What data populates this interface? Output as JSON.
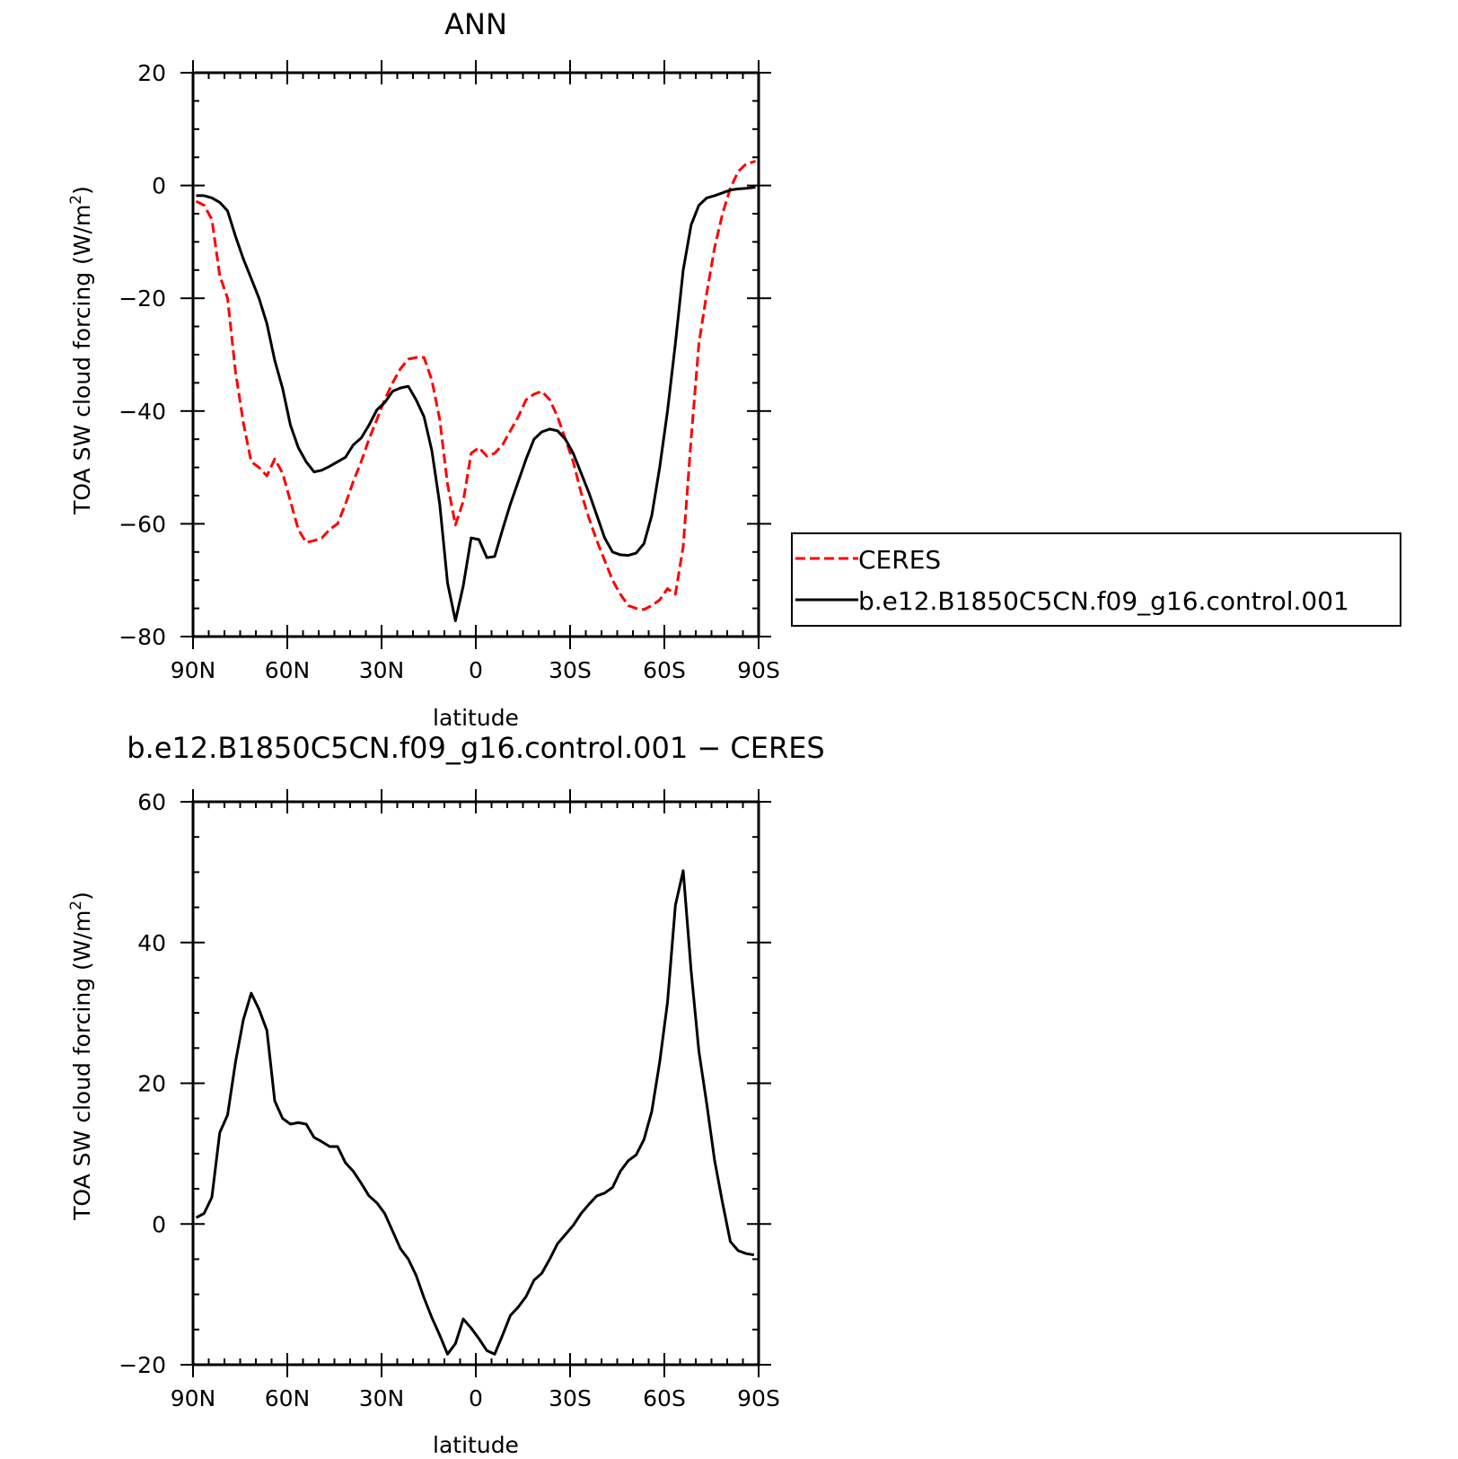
{
  "chart_data": [
    {
      "type": "line",
      "title": "ANN",
      "xlabel": "latitude",
      "ylabel": "TOA SW cloud forcing (W/m",
      "ylabel_sup": "2",
      "ylabel_close": ")",
      "xlim": [
        90,
        -90
      ],
      "ylim": [
        -80,
        20
      ],
      "xticks": [
        {
          "value": 90,
          "label": "90N"
        },
        {
          "value": 60,
          "label": "60N"
        },
        {
          "value": 30,
          "label": "30N"
        },
        {
          "value": 0,
          "label": "0"
        },
        {
          "value": -30,
          "label": "30S"
        },
        {
          "value": -60,
          "label": "60S"
        },
        {
          "value": -90,
          "label": "90S"
        }
      ],
      "yticks": [
        {
          "value": 20,
          "label": "20"
        },
        {
          "value": 0,
          "label": "0"
        },
        {
          "value": -20,
          "label": "−20"
        },
        {
          "value": -40,
          "label": "−40"
        },
        {
          "value": -60,
          "label": "−60"
        },
        {
          "value": -80,
          "label": "−80"
        }
      ],
      "legend_position": "right",
      "series": [
        {
          "name": "CERES",
          "color": "#ff0000",
          "style": "dashed",
          "points": [
            [
              89,
              -2.8
            ],
            [
              86.5,
              -3.5
            ],
            [
              84,
              -6
            ],
            [
              81.5,
              -16
            ],
            [
              79,
              -20
            ],
            [
              76.5,
              -33
            ],
            [
              74,
              -42
            ],
            [
              71.5,
              -49
            ],
            [
              69,
              -50
            ],
            [
              66.5,
              -51.5
            ],
            [
              64,
              -48.5
            ],
            [
              61.5,
              -51
            ],
            [
              59,
              -56
            ],
            [
              56.5,
              -61
            ],
            [
              54,
              -63.3
            ],
            [
              51.5,
              -63
            ],
            [
              49,
              -62.5
            ],
            [
              46.5,
              -61
            ],
            [
              44,
              -60
            ],
            [
              41.5,
              -56.5
            ],
            [
              39,
              -52.5
            ],
            [
              36.5,
              -49
            ],
            [
              34,
              -45
            ],
            [
              31.5,
              -41.5
            ],
            [
              29,
              -38
            ],
            [
              26.5,
              -35
            ],
            [
              24,
              -32.5
            ],
            [
              21.5,
              -30.8
            ],
            [
              19,
              -30.5
            ],
            [
              16.5,
              -30.5
            ],
            [
              14,
              -34.5
            ],
            [
              11.5,
              -41.5
            ],
            [
              9,
              -53
            ],
            [
              6.5,
              -60.2
            ],
            [
              4,
              -56
            ],
            [
              1.5,
              -47.5
            ],
            [
              -1,
              -46.5
            ],
            [
              -3.5,
              -48
            ],
            [
              -6,
              -47.5
            ],
            [
              -8.5,
              -46
            ],
            [
              -11,
              -43.5
            ],
            [
              -13.5,
              -41
            ],
            [
              -16,
              -38
            ],
            [
              -18.5,
              -37
            ],
            [
              -21,
              -36.5
            ],
            [
              -23.5,
              -38
            ],
            [
              -26,
              -41
            ],
            [
              -28.5,
              -45
            ],
            [
              -31,
              -49
            ],
            [
              -33.5,
              -54.5
            ],
            [
              -36,
              -59
            ],
            [
              -38.5,
              -63
            ],
            [
              -41,
              -66.5
            ],
            [
              -43.5,
              -70
            ],
            [
              -46,
              -72.5
            ],
            [
              -48.5,
              -74.5
            ],
            [
              -51,
              -75
            ],
            [
              -53.5,
              -75.2
            ],
            [
              -56,
              -74.5
            ],
            [
              -58.5,
              -73.5
            ],
            [
              -61,
              -71.5
            ],
            [
              -63.5,
              -72.5
            ],
            [
              -66,
              -64
            ],
            [
              -68.5,
              -45
            ],
            [
              -71,
              -28
            ],
            [
              -73.5,
              -19
            ],
            [
              -76,
              -11
            ],
            [
              -78.5,
              -5
            ],
            [
              -81,
              -0.5
            ],
            [
              -83.5,
              2.5
            ],
            [
              -86,
              3.8
            ],
            [
              -89,
              4.3
            ]
          ]
        },
        {
          "name": "b.e12.B1850C5CN.f09_g16.control.001",
          "color": "#000000",
          "style": "solid",
          "points": [
            [
              89,
              -1.8
            ],
            [
              86.5,
              -1.8
            ],
            [
              84,
              -2.2
            ],
            [
              81.5,
              -3
            ],
            [
              79,
              -4.5
            ],
            [
              76.5,
              -9
            ],
            [
              74,
              -13
            ],
            [
              71.5,
              -16.5
            ],
            [
              69,
              -20
            ],
            [
              66.5,
              -24.5
            ],
            [
              64,
              -31
            ],
            [
              61.5,
              -36
            ],
            [
              59,
              -42.5
            ],
            [
              56.5,
              -46.5
            ],
            [
              54,
              -49
            ],
            [
              51.5,
              -50.8
            ],
            [
              49,
              -50.5
            ],
            [
              46.5,
              -49.8
            ],
            [
              44,
              -49
            ],
            [
              41.5,
              -48.2
            ],
            [
              39,
              -46
            ],
            [
              36.5,
              -44.8
            ],
            [
              34,
              -42.5
            ],
            [
              31.5,
              -39.8
            ],
            [
              29,
              -38.5
            ],
            [
              26.5,
              -36.5
            ],
            [
              24,
              -35.9
            ],
            [
              21.5,
              -35.6
            ],
            [
              19,
              -38
            ],
            [
              16.5,
              -41
            ],
            [
              14,
              -47
            ],
            [
              11.5,
              -56.5
            ],
            [
              9,
              -70.5
            ],
            [
              6.5,
              -77.2
            ],
            [
              4,
              -71
            ],
            [
              1.5,
              -62.5
            ],
            [
              -1,
              -62.8
            ],
            [
              -3.5,
              -66
            ],
            [
              -6,
              -65.8
            ],
            [
              -8.5,
              -61
            ],
            [
              -11,
              -56.5
            ],
            [
              -13.5,
              -52.5
            ],
            [
              -16,
              -48.5
            ],
            [
              -18.5,
              -45
            ],
            [
              -21,
              -43.7
            ],
            [
              -23.5,
              -43.2
            ],
            [
              -26,
              -43.5
            ],
            [
              -28.5,
              -45
            ],
            [
              -31,
              -47.5
            ],
            [
              -33.5,
              -51
            ],
            [
              -36,
              -54.5
            ],
            [
              -38.5,
              -58.5
            ],
            [
              -41,
              -62.5
            ],
            [
              -43.5,
              -65
            ],
            [
              -46,
              -65.5
            ],
            [
              -48.5,
              -65.6
            ],
            [
              -51,
              -65.2
            ],
            [
              -53.5,
              -63.5
            ],
            [
              -56,
              -58.5
            ],
            [
              -58.5,
              -50
            ],
            [
              -61,
              -40
            ],
            [
              -63.5,
              -28
            ],
            [
              -66,
              -15
            ],
            [
              -68.5,
              -7
            ],
            [
              -71,
              -3.5
            ],
            [
              -73.5,
              -2.2
            ],
            [
              -76,
              -1.8
            ],
            [
              -78.5,
              -1.3
            ],
            [
              -81,
              -0.8
            ],
            [
              -83.5,
              -0.6
            ],
            [
              -86,
              -0.5
            ],
            [
              -89,
              -0.3
            ]
          ]
        }
      ]
    },
    {
      "type": "line",
      "title": "b.e12.B1850C5CN.f09_g16.control.001 − CERES",
      "xlabel": "latitude",
      "ylabel": "TOA SW cloud forcing (W/m",
      "ylabel_sup": "2",
      "ylabel_close": ")",
      "xlim": [
        90,
        -90
      ],
      "ylim": [
        -20,
        60
      ],
      "xticks": [
        {
          "value": 90,
          "label": "90N"
        },
        {
          "value": 60,
          "label": "60N"
        },
        {
          "value": 30,
          "label": "30N"
        },
        {
          "value": 0,
          "label": "0"
        },
        {
          "value": -30,
          "label": "30S"
        },
        {
          "value": -60,
          "label": "60S"
        },
        {
          "value": -90,
          "label": "90S"
        }
      ],
      "yticks": [
        {
          "value": 60,
          "label": "60"
        },
        {
          "value": 40,
          "label": "40"
        },
        {
          "value": 20,
          "label": "20"
        },
        {
          "value": 0,
          "label": "0"
        },
        {
          "value": -20,
          "label": "−20"
        }
      ],
      "series": [
        {
          "color": "#000000",
          "style": "solid",
          "points": [
            [
              89,
              0.9
            ],
            [
              86.5,
              1.5
            ],
            [
              84,
              3.8
            ],
            [
              81.5,
              13
            ],
            [
              79,
              15.5
            ],
            [
              76.5,
              23
            ],
            [
              74,
              29
            ],
            [
              71.5,
              32.8
            ],
            [
              69,
              30.5
            ],
            [
              66.5,
              27.5
            ],
            [
              64,
              17.5
            ],
            [
              61.5,
              15
            ],
            [
              59,
              14.2
            ],
            [
              56.5,
              14.4
            ],
            [
              54,
              14.2
            ],
            [
              51.5,
              12.3
            ],
            [
              49,
              11.7
            ],
            [
              46.5,
              11
            ],
            [
              44,
              11
            ],
            [
              41.5,
              8.7
            ],
            [
              39,
              7.5
            ],
            [
              36.5,
              5.8
            ],
            [
              34,
              4
            ],
            [
              31.5,
              3
            ],
            [
              29,
              1.5
            ],
            [
              26.5,
              -1
            ],
            [
              24,
              -3.5
            ],
            [
              21.5,
              -5
            ],
            [
              19,
              -7.3
            ],
            [
              16.5,
              -10.5
            ],
            [
              14,
              -13.3
            ],
            [
              11.5,
              -15.8
            ],
            [
              9,
              -18.5
            ],
            [
              6.5,
              -17
            ],
            [
              4,
              -13.5
            ],
            [
              1.5,
              -14.8
            ],
            [
              -1,
              -16.3
            ],
            [
              -3.5,
              -18
            ],
            [
              -6,
              -18.5
            ],
            [
              -8.5,
              -15.8
            ],
            [
              -11,
              -13
            ],
            [
              -13.5,
              -11.8
            ],
            [
              -16,
              -10.3
            ],
            [
              -18.5,
              -8
            ],
            [
              -21,
              -7
            ],
            [
              -23.5,
              -5
            ],
            [
              -26,
              -2.8
            ],
            [
              -28.5,
              -1.5
            ],
            [
              -31,
              -0.2
            ],
            [
              -33.5,
              1.5
            ],
            [
              -36,
              2.8
            ],
            [
              -38.5,
              4
            ],
            [
              -41,
              4.4
            ],
            [
              -43.5,
              5.2
            ],
            [
              -46,
              7.5
            ],
            [
              -48.5,
              9
            ],
            [
              -51,
              9.8
            ],
            [
              -53.5,
              12
            ],
            [
              -56,
              16
            ],
            [
              -58.5,
              23
            ],
            [
              -61,
              31.5
            ],
            [
              -63.5,
              45.3
            ],
            [
              -66,
              50.2
            ],
            [
              -68.5,
              36
            ],
            [
              -71,
              24.5
            ],
            [
              -73.5,
              17
            ],
            [
              -76,
              9
            ],
            [
              -78.5,
              3
            ],
            [
              -81,
              -2.5
            ],
            [
              -83.5,
              -3.8
            ],
            [
              -86,
              -4.2
            ],
            [
              -88.5,
              -4.4
            ]
          ]
        }
      ]
    }
  ]
}
